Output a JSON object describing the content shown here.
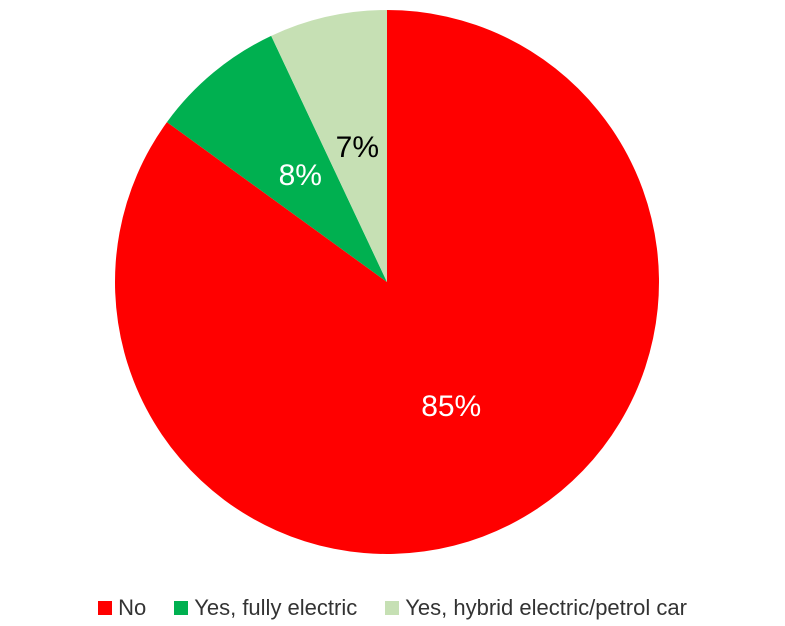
{
  "chart_data": {
    "type": "pie",
    "categories": [
      "No",
      "Yes, fully electric",
      "Yes, hybrid electric/petrol car"
    ],
    "values": [
      85,
      8,
      7
    ],
    "labels": [
      "85%",
      "8%",
      "7%"
    ],
    "unit": "%",
    "colors": [
      "#ff0000",
      "#00b050",
      "#c6e0b4"
    ],
    "label_colors": [
      "#ffffff",
      "#ffffff",
      "#000000"
    ],
    "start_angle": "12 o'clock",
    "direction": "clockwise",
    "legend_position": "bottom"
  }
}
